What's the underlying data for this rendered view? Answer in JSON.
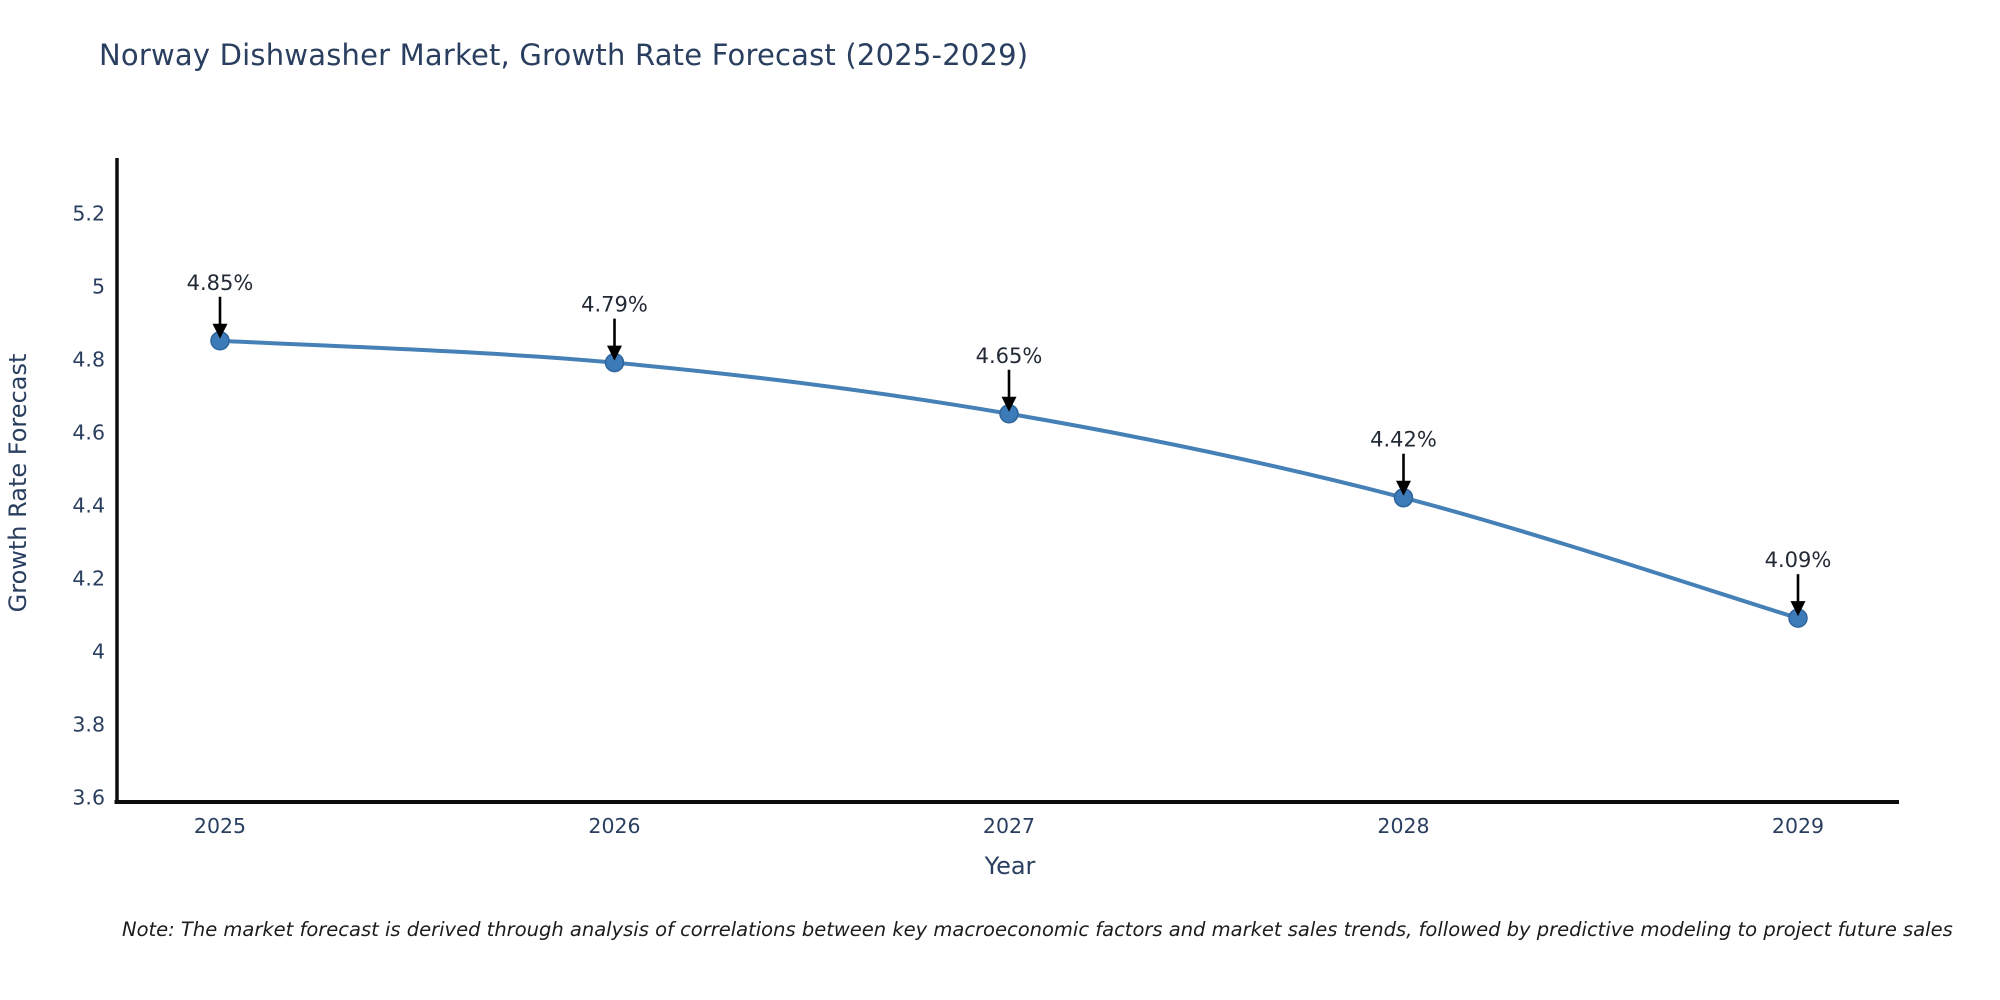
{
  "chart_data": {
    "type": "line",
    "title": "Norway Dishwasher Market, Growth Rate Forecast (2025-2029)",
    "xlabel": "Year",
    "ylabel": "Growth Rate Forecast",
    "x": [
      2025,
      2026,
      2027,
      2028,
      2029
    ],
    "series": [
      {
        "name": "Growth Rate Forecast",
        "values": [
          4.85,
          4.79,
          4.65,
          4.42,
          4.09
        ],
        "point_labels": [
          "4.85%",
          "4.79%",
          "4.65%",
          "4.42%",
          "4.09%"
        ]
      }
    ],
    "xticks": [
      "2025",
      "2026",
      "2027",
      "2028",
      "2029"
    ],
    "yticks": [
      "3.6",
      "3.8",
      "4",
      "4.2",
      "4.4",
      "4.6",
      "4.8",
      "5",
      "5.2"
    ],
    "ylim": [
      3.59,
      5.35
    ],
    "grid": false,
    "legend": false,
    "line_shape": "spline",
    "colors": {
      "line": "#4580b6",
      "marker_fill": "#3d7ab8",
      "marker_edge": "#2e659c",
      "axis_line": "#0d0d0d",
      "text": "#2a3f5f",
      "annotation_arrow": "#000000"
    }
  },
  "footnote": "Note: The market forecast is derived through analysis of correlations between key macroeconomic factors and market sales trends, followed by predictive modeling to project future sales"
}
